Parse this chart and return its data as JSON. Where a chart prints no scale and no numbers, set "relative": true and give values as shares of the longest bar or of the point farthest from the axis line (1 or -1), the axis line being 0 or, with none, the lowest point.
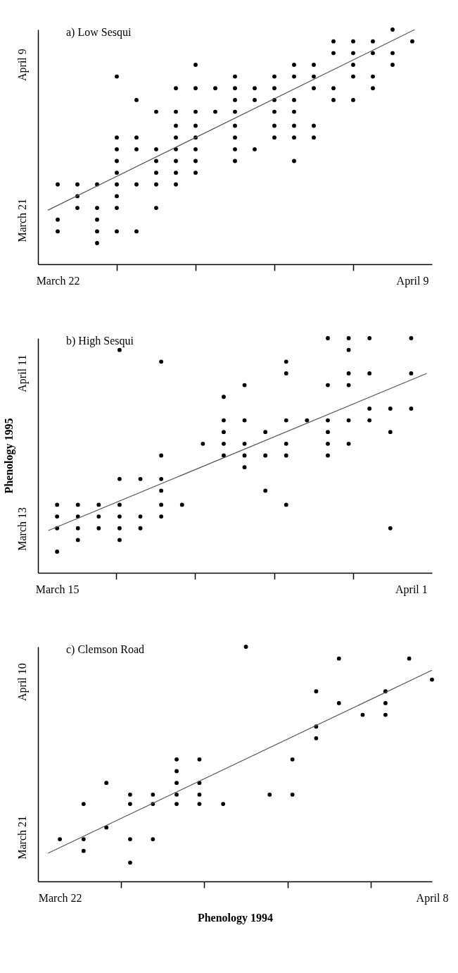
{
  "chart_data": [
    {
      "type": "scatter",
      "title": "a) Low Sesqui",
      "relative": true,
      "annotations": [
        "March 21",
        "April 9"
      ],
      "xlim": [
        "--03-21",
        "--04-10"
      ],
      "xticks": [
        {
          "value": "--03-22",
          "label": "March 22"
        },
        {
          "value": "--03-25",
          "label": null
        },
        {
          "value": "--03-29",
          "label": null
        },
        {
          "value": "--04-02",
          "label": null
        },
        {
          "value": "--04-06",
          "label": null
        },
        {
          "value": "--04-09",
          "label": "April 9"
        }
      ],
      "series": [
        {
          "type": "scatter",
          "color": "#000000",
          "marker": "circle",
          "x": [
            "--03-22",
            "--03-22",
            "--03-22",
            "--03-23",
            "--03-23",
            "--03-23",
            "--03-24",
            "--03-24",
            "--03-24",
            "--03-24",
            "--03-24",
            "--03-25",
            "--03-25",
            "--03-25",
            "--03-25",
            "--03-25",
            "--03-25",
            "--03-25",
            "--03-25",
            "--03-25",
            "--03-26",
            "--03-26",
            "--03-26",
            "--03-26",
            "--03-26",
            "--03-27",
            "--03-27",
            "--03-27",
            "--03-27",
            "--03-27",
            "--03-27",
            "--03-28",
            "--03-28",
            "--03-28",
            "--03-28",
            "--03-28",
            "--03-28",
            "--03-28",
            "--03-28",
            "--03-29",
            "--03-29",
            "--03-29",
            "--03-29",
            "--03-29",
            "--03-29",
            "--03-29",
            "--03-29",
            "--03-30",
            "--03-30",
            "--03-31",
            "--03-31",
            "--03-31",
            "--03-31",
            "--03-31",
            "--03-31",
            "--03-31",
            "--03-31",
            "--04-01",
            "--04-01",
            "--04-01",
            "--04-02",
            "--04-02",
            "--04-02",
            "--04-02",
            "--04-02",
            "--04-02",
            "--04-03",
            "--04-03",
            "--04-03",
            "--04-03",
            "--04-03",
            "--04-03",
            "--04-03",
            "--04-04",
            "--04-04",
            "--04-04",
            "--04-04",
            "--04-04",
            "--04-05",
            "--04-05",
            "--04-05",
            "--04-05",
            "--04-06",
            "--04-06",
            "--04-06",
            "--04-06",
            "--04-06",
            "--04-07",
            "--04-07",
            "--04-07",
            "--04-07",
            "--04-08",
            "--04-08",
            "--04-08",
            "--04-09"
          ],
          "values": [
            0.34,
            0.19,
            0.14,
            0.34,
            0.29,
            0.24,
            0.34,
            0.24,
            0.19,
            0.14,
            0.09,
            0.8,
            0.54,
            0.49,
            0.44,
            0.39,
            0.34,
            0.29,
            0.24,
            0.14,
            0.7,
            0.54,
            0.49,
            0.34,
            0.14,
            0.65,
            0.49,
            0.44,
            0.39,
            0.34,
            0.24,
            0.75,
            0.65,
            0.59,
            0.54,
            0.49,
            0.44,
            0.39,
            0.34,
            0.85,
            0.75,
            0.65,
            0.59,
            0.54,
            0.49,
            0.44,
            0.39,
            0.75,
            0.65,
            0.8,
            0.75,
            0.7,
            0.65,
            0.59,
            0.54,
            0.49,
            0.44,
            0.75,
            0.7,
            0.49,
            0.8,
            0.75,
            0.7,
            0.65,
            0.59,
            0.54,
            0.85,
            0.8,
            0.7,
            0.65,
            0.59,
            0.54,
            0.44,
            0.85,
            0.8,
            0.75,
            0.59,
            0.54,
            0.95,
            0.9,
            0.75,
            0.7,
            0.95,
            0.9,
            0.85,
            0.8,
            0.7,
            0.95,
            0.9,
            0.8,
            0.75,
            1,
            0.9,
            0.85,
            0.95
          ]
        },
        {
          "type": "line",
          "color": "#555555",
          "x": [
            "--03-21T12:00",
            "--04-09T03:00"
          ],
          "values": [
            0.23,
            1
          ]
        }
      ]
    },
    {
      "type": "scatter",
      "title": "b) High Sesqui",
      "ylabel": "Phenology 1995",
      "relative": true,
      "annotations": [
        "March 13",
        "April 11"
      ],
      "xlim": [
        "--03-14T02:00",
        "--04-02"
      ],
      "xticks": [
        {
          "value": "--03-15",
          "label": "March 15"
        },
        {
          "value": "--03-17T20:00",
          "label": null
        },
        {
          "value": "--03-21T15:00",
          "label": null
        },
        {
          "value": "--03-25T10:00",
          "label": null
        },
        {
          "value": "--03-29T05:00",
          "label": null
        },
        {
          "value": "--04-01",
          "label": "April 1"
        }
      ],
      "series": [
        {
          "type": "scatter",
          "color": "#000000",
          "marker": "circle",
          "x": [
            "--03-15",
            "--03-15",
            "--03-15",
            "--03-15",
            "--03-16",
            "--03-16",
            "--03-16",
            "--03-16",
            "--03-17",
            "--03-17",
            "--03-17",
            "--03-18",
            "--03-18",
            "--03-18",
            "--03-18",
            "--03-18",
            "--03-18",
            "--03-19",
            "--03-19",
            "--03-19",
            "--03-20",
            "--03-20",
            "--03-20",
            "--03-20",
            "--03-20",
            "--03-20",
            "--03-21",
            "--03-22",
            "--03-23",
            "--03-23",
            "--03-23",
            "--03-23",
            "--03-23",
            "--03-24",
            "--03-24",
            "--03-24",
            "--03-24",
            "--03-24",
            "--03-25",
            "--03-25",
            "--03-25",
            "--03-26",
            "--03-26",
            "--03-26",
            "--03-26",
            "--03-26",
            "--03-26",
            "--03-27",
            "--03-28",
            "--03-28",
            "--03-28",
            "--03-28",
            "--03-28",
            "--03-28",
            "--03-29",
            "--03-29",
            "--03-29",
            "--03-29",
            "--03-29",
            "--03-29",
            "--03-30",
            "--03-30",
            "--03-30",
            "--03-30",
            "--03-31",
            "--03-31",
            "--03-31",
            "--04-01",
            "--04-01",
            "--04-01"
          ],
          "values": [
            0.29,
            0.24,
            0.19,
            0.09,
            0.29,
            0.24,
            0.19,
            0.14,
            0.29,
            0.24,
            0.19,
            0.95,
            0.4,
            0.29,
            0.24,
            0.19,
            0.14,
            0.4,
            0.24,
            0.19,
            0.9,
            0.5,
            0.4,
            0.35,
            0.29,
            0.24,
            0.29,
            0.55,
            0.75,
            0.65,
            0.6,
            0.55,
            0.5,
            0.8,
            0.65,
            0.55,
            0.5,
            0.45,
            0.6,
            0.5,
            0.35,
            0.9,
            0.85,
            0.65,
            0.55,
            0.5,
            0.29,
            0.65,
            1,
            0.8,
            0.65,
            0.6,
            0.55,
            0.5,
            1,
            0.95,
            0.85,
            0.8,
            0.65,
            0.55,
            1,
            0.85,
            0.7,
            0.65,
            0.7,
            0.6,
            0.19,
            1,
            0.85,
            0.7
          ]
        },
        {
          "type": "line",
          "color": "#555555",
          "x": [
            "--03-14T14:00",
            "--04-01T18:00"
          ],
          "values": [
            0.18,
            0.85
          ]
        }
      ]
    },
    {
      "type": "scatter",
      "title": "c) Clemson Road",
      "xlabel": "Phenology 1994",
      "relative": true,
      "annotations": [
        "March 21",
        "April 10"
      ],
      "xlim": [
        "--03-21",
        "--04-08"
      ],
      "xticks": [
        {
          "value": "--03-22",
          "label": "March 22"
        },
        {
          "value": "--03-24T19:00",
          "label": null
        },
        {
          "value": "--03-28T14:00",
          "label": null
        },
        {
          "value": "--04-01T10:00",
          "label": null
        },
        {
          "value": "--04-05T05:00",
          "label": null
        },
        {
          "value": "--04-08",
          "label": "April 8"
        }
      ],
      "series": [
        {
          "type": "scatter",
          "color": "#000000",
          "marker": "circle",
          "x": [
            "--03-22T00:00",
            "--03-23T02:00",
            "--03-23T02:00",
            "--03-23T02:00",
            "--03-24T03:00",
            "--03-24T03:00",
            "--03-25T05:00",
            "--03-25T05:00",
            "--03-25T05:00",
            "--03-25T05:00",
            "--03-26T06:00",
            "--03-26T06:00",
            "--03-26T06:00",
            "--03-27T08:00",
            "--03-27T08:00",
            "--03-27T08:00",
            "--03-27T08:00",
            "--03-27T08:00",
            "--03-28T09:00",
            "--03-28T09:00",
            "--03-28T09:00",
            "--03-28T09:00",
            "--03-29T11:00",
            "--03-30T12:00",
            "--03-31T14:00",
            "--04-01T15:00",
            "--04-01T15:00",
            "--04-02T17:00",
            "--04-02T17:00",
            "--04-02T17:00",
            "--04-03T18:00",
            "--04-03T18:00",
            "--04-04T20:00",
            "--04-05T21:00",
            "--04-05T21:00",
            "--04-05T21:00",
            "--04-06T23:00",
            "--04-08T00:00"
          ],
          "values": [
            0.18,
            0.33,
            0.18,
            0.13,
            0.42,
            0.23,
            0.37,
            0.33,
            0.18,
            0.08,
            0.37,
            0.33,
            0.18,
            0.52,
            0.47,
            0.42,
            0.37,
            0.33,
            0.52,
            0.42,
            0.37,
            0.33,
            0.33,
            1,
            0.37,
            0.52,
            0.37,
            0.81,
            0.66,
            0.61,
            0.95,
            0.76,
            0.71,
            0.81,
            0.76,
            0.71,
            0.95,
            0.86
          ]
        },
        {
          "type": "line",
          "color": "#555555",
          "x": [
            "--03-21T11:00",
            "--04-08T00:00"
          ],
          "values": [
            0.12,
            0.9
          ]
        }
      ]
    }
  ]
}
